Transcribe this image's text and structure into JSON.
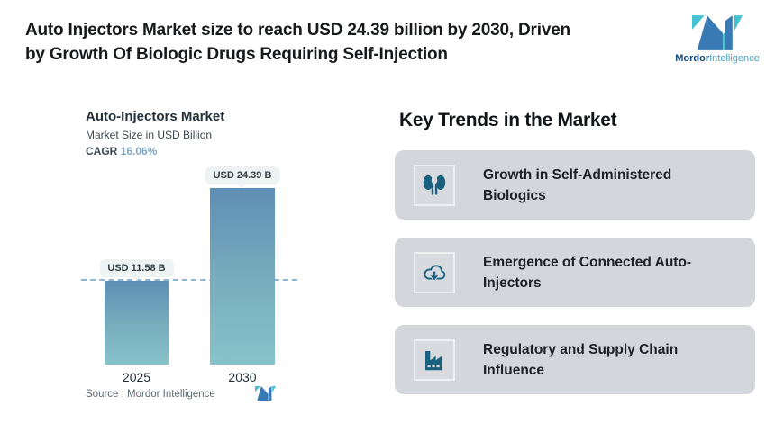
{
  "header": {
    "title_lines": [
      "Auto Injectors Market size to reach USD 24.39 billion by 2030, Driven",
      "by Growth Of Biologic Drugs Requiring Self-Injection"
    ],
    "brand": {
      "bold": "Mordor",
      "light": "Intelligence"
    }
  },
  "chart": {
    "title": "Auto-Injectors Market",
    "subtitle": "Market Size in USD Billion",
    "cagr_label": "CAGR",
    "cagr_value": "16.06%",
    "source_label": "Source :",
    "source_value": "Mordor Intelligence"
  },
  "chart_data": {
    "type": "bar",
    "title": "Auto-Injectors Market",
    "ylabel": "Market Size in USD Billion",
    "cagr_pct": 16.06,
    "categories": [
      "2025",
      "2030"
    ],
    "values": [
      11.58,
      24.39
    ],
    "value_labels": [
      "USD 11.58 B",
      "USD 24.39 B"
    ],
    "ylim": [
      0,
      28
    ],
    "reference_line": 11.58,
    "grid": false,
    "legend": "none",
    "bar_color_top": "#5e8fb5",
    "bar_color_bottom": "#87c2ca"
  },
  "trends": {
    "heading": "Key Trends in the Market",
    "cards": [
      {
        "icon": "kidneys-icon",
        "label": "Growth in Self-Administered Biologics"
      },
      {
        "icon": "cloud-download-icon",
        "label": "Emergence of Connected Auto-Injectors"
      },
      {
        "icon": "factory-icon",
        "label": "Regulatory and Supply Chain Influence"
      }
    ]
  },
  "colors": {
    "accent_blue": "#3a7ab4",
    "accent_teal": "#45c2d1",
    "icon_teal": "#1a617f",
    "card_bg": "#d3d6da",
    "dashed_line": "#8fb4d0",
    "cagr_value": "#7fa9c7",
    "tooltip_bg": "#edf2f2"
  }
}
